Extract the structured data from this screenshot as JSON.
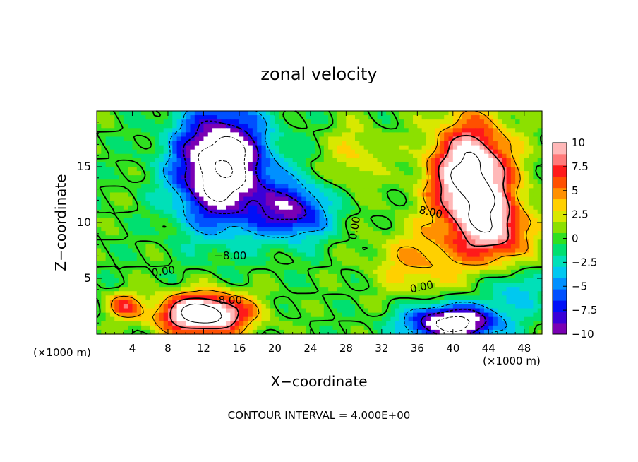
{
  "chart_data": {
    "type": "heatmap",
    "title": "zonal velocity",
    "xlabel": "X−coordinate",
    "ylabel": "Z−coordinate",
    "x_unit_left": "(×1000 m)",
    "x_unit_right": "(×1000 m)",
    "footer": "CONTOUR INTERVAL = 4.000E+00",
    "xlim": [
      0,
      50
    ],
    "ylim": [
      0,
      20
    ],
    "x_ticks": [
      {
        "v": 4,
        "label": "4"
      },
      {
        "v": 8,
        "label": "8"
      },
      {
        "v": 12,
        "label": "12"
      },
      {
        "v": 16,
        "label": "16"
      },
      {
        "v": 20,
        "label": "20"
      },
      {
        "v": 24,
        "label": "24"
      },
      {
        "v": 28,
        "label": "28"
      },
      {
        "v": 32,
        "label": "32"
      },
      {
        "v": 36,
        "label": "36"
      },
      {
        "v": 40,
        "label": "40"
      },
      {
        "v": 44,
        "label": "44"
      },
      {
        "v": 48,
        "label": "48"
      }
    ],
    "y_ticks": [
      {
        "v": 5,
        "label": "5"
      },
      {
        "v": 10,
        "label": "10"
      },
      {
        "v": 15,
        "label": "15"
      }
    ],
    "colorbar": {
      "min": -10,
      "max": 10,
      "ticks": [
        {
          "v": 10,
          "label": "10"
        },
        {
          "v": 7.5,
          "label": "7.5"
        },
        {
          "v": 5,
          "label": "5"
        },
        {
          "v": 2.5,
          "label": "2.5"
        },
        {
          "v": 0,
          "label": "0"
        },
        {
          "v": -2.5,
          "label": "−2.5"
        },
        {
          "v": -5,
          "label": "−5"
        },
        {
          "v": -7.5,
          "label": "−7.5"
        },
        {
          "v": -10,
          "label": "−10"
        }
      ],
      "colors": [
        "#7a00b4",
        "#3a00d8",
        "#0010f8",
        "#0050ff",
        "#0090ff",
        "#00c8f0",
        "#00e0b8",
        "#00e070",
        "#30e020",
        "#8ce000",
        "#d8e800",
        "#ffd000",
        "#ff9000",
        "#ff5000",
        "#ff1a1a",
        "#ff7a7a",
        "#ffb8b8"
      ]
    },
    "features": [
      {
        "x": 14,
        "z": 15,
        "amp": -16,
        "sx": 5,
        "sz": 5
      },
      {
        "x": 22,
        "z": 11,
        "amp": -9,
        "sx": 4,
        "sz": 2.5
      },
      {
        "x": 42,
        "z": 14,
        "amp": 14,
        "sx": 4.5,
        "sz": 5
      },
      {
        "x": 45,
        "z": 9,
        "amp": 7,
        "sx": 4,
        "sz": 3
      },
      {
        "x": 12,
        "z": 1.8,
        "amp": 15,
        "sx": 5,
        "sz": 1.8
      },
      {
        "x": 3,
        "z": 2.5,
        "amp": 6,
        "sx": 2,
        "sz": 1.2
      },
      {
        "x": 40,
        "z": 1,
        "amp": -14,
        "sx": 5,
        "sz": 1.6
      },
      {
        "x": 36,
        "z": 6.5,
        "amp": 4,
        "sx": 5,
        "sz": 3
      },
      {
        "x": 47,
        "z": 4,
        "amp": -4,
        "sx": 3,
        "sz": 2
      },
      {
        "x": 29,
        "z": 16,
        "amp": 3,
        "sx": 3,
        "sz": 3
      }
    ],
    "contour_labels": [
      {
        "x": 15,
        "z": 7.0,
        "text": "−8.00",
        "angle": 0
      },
      {
        "x": 7.5,
        "z": 5.6,
        "text": "0.00",
        "angle": -8
      },
      {
        "x": 15,
        "z": 3.0,
        "text": "8.00",
        "angle": 0
      },
      {
        "x": 29,
        "z": 9.5,
        "text": "0.00",
        "angle": -80
      },
      {
        "x": 37.5,
        "z": 10.9,
        "text": "8.00",
        "angle": 12
      },
      {
        "x": 36.5,
        "z": 4.2,
        "text": "0.00",
        "angle": -12
      }
    ]
  }
}
